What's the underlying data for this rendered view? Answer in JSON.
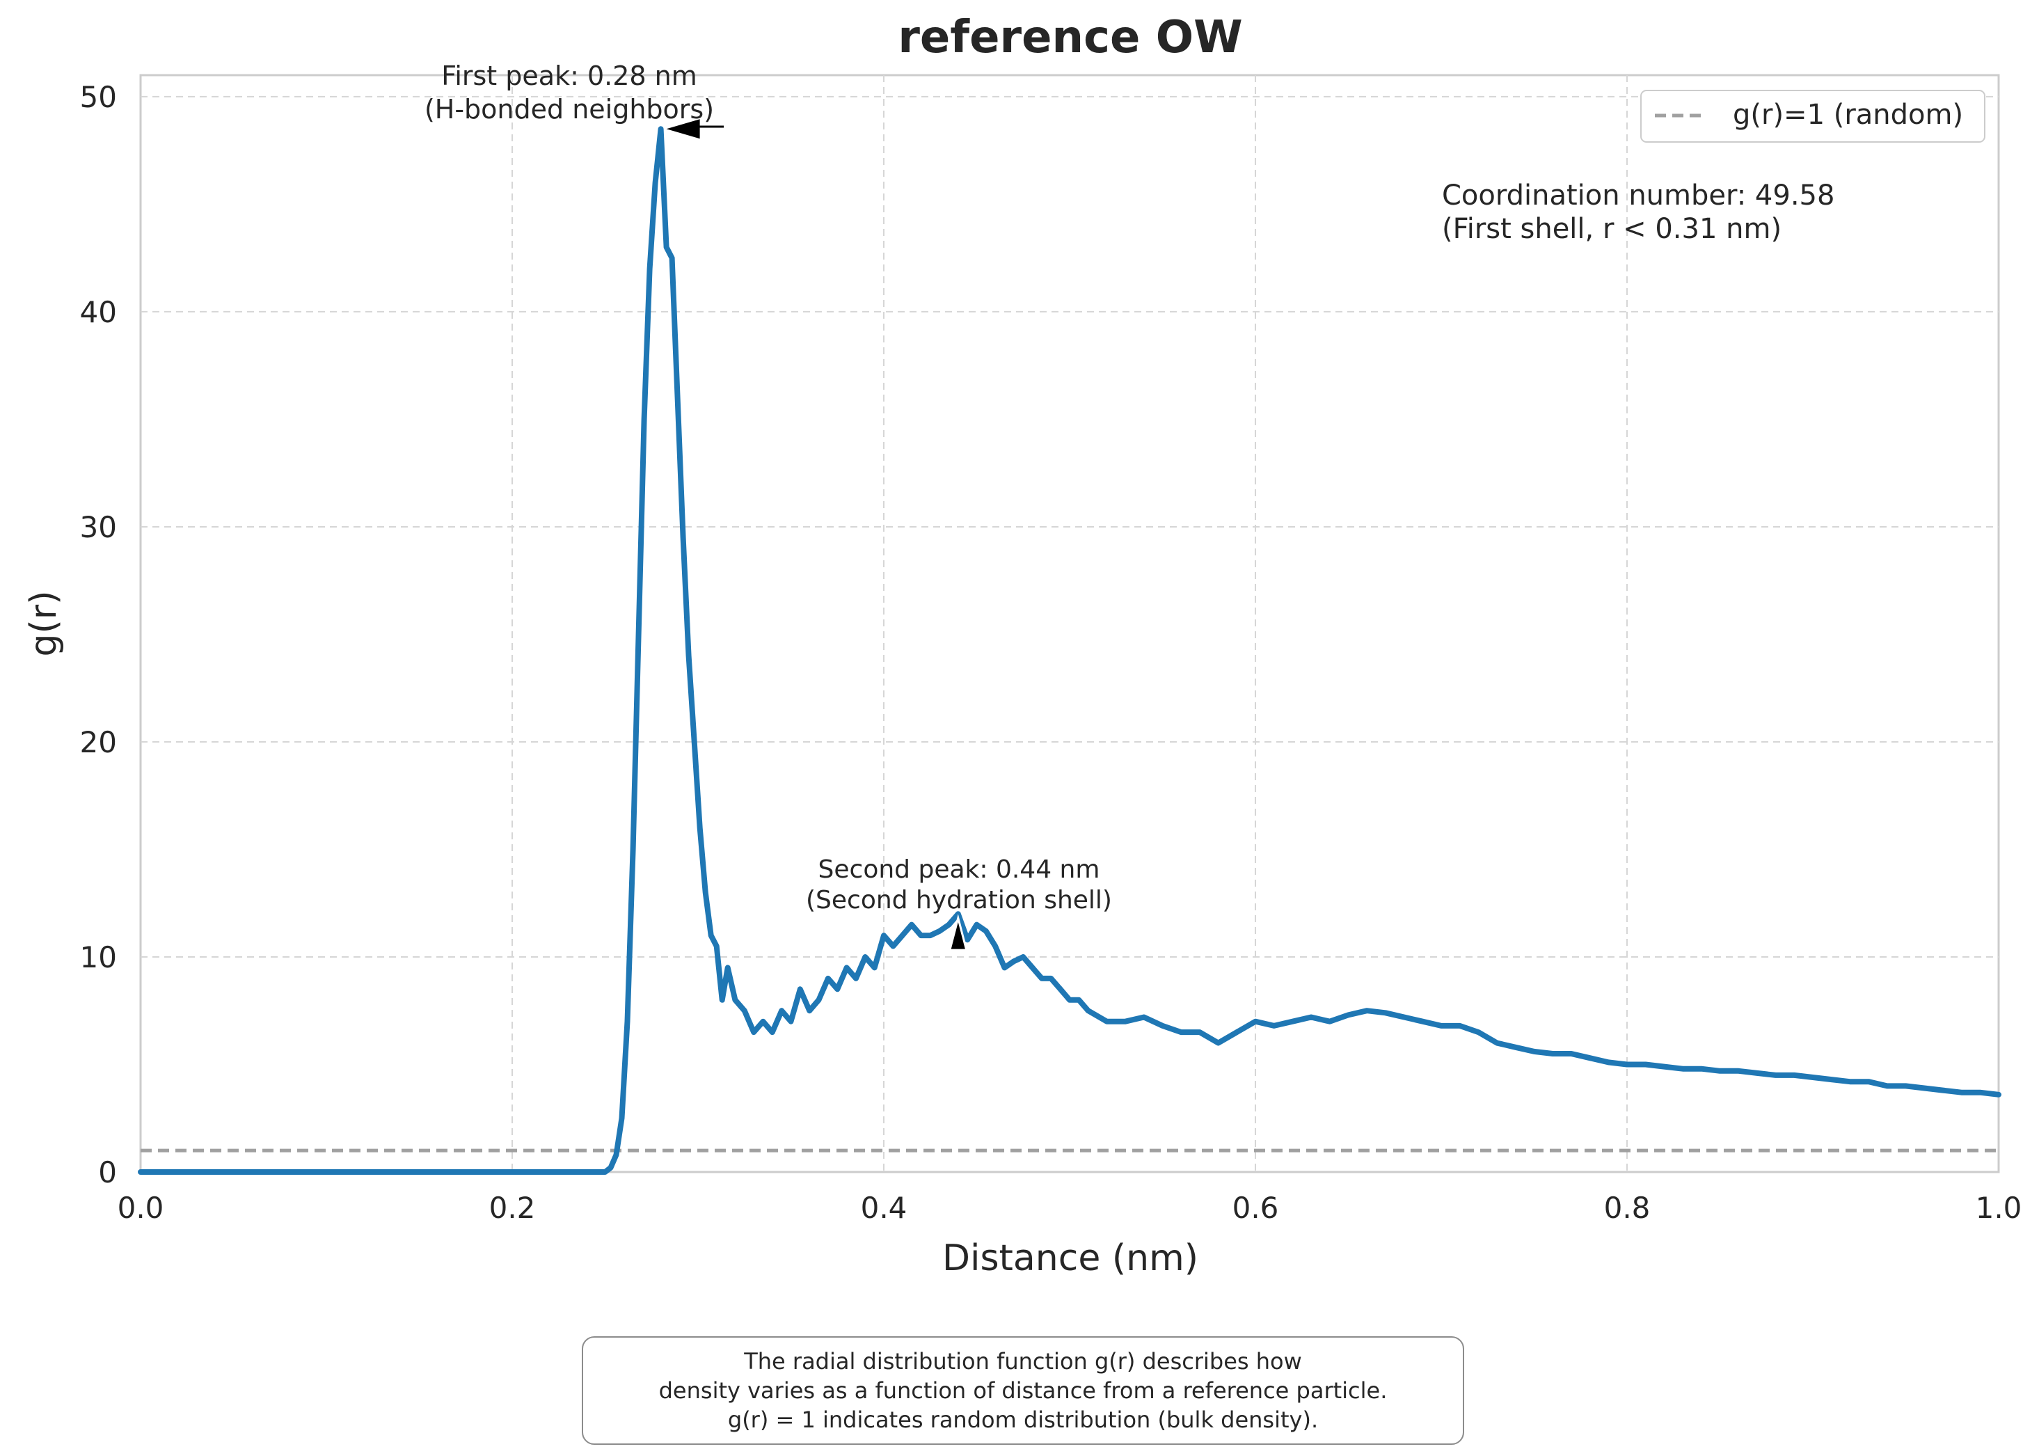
{
  "chart_data": {
    "type": "line",
    "title": "reference OW",
    "xlabel": "Distance (nm)",
    "ylabel": "g(r)",
    "xlim": [
      0.0,
      1.0
    ],
    "ylim": [
      0,
      51
    ],
    "xticks": [
      "0.0",
      "0.2",
      "0.4",
      "0.6",
      "0.8",
      "1.0"
    ],
    "yticks": [
      "0",
      "10",
      "20",
      "30",
      "40",
      "50"
    ],
    "grid": true,
    "legend": {
      "placement": "top-right",
      "entries": [
        "g(r)=1 (random)"
      ]
    },
    "reference_line": {
      "y": 1,
      "label": "g(r)=1 (random)",
      "color": "#a0a0a0"
    },
    "line_color": "#1f77b4",
    "series": [
      {
        "x": [
          0.0,
          0.05,
          0.1,
          0.15,
          0.2,
          0.25,
          0.253,
          0.256,
          0.259,
          0.262,
          0.265,
          0.268,
          0.271,
          0.274,
          0.277,
          0.28,
          0.283,
          0.286,
          0.289,
          0.292,
          0.295,
          0.298,
          0.301,
          0.304,
          0.307,
          0.31,
          0.313,
          0.316,
          0.32,
          0.325,
          0.33,
          0.335,
          0.34,
          0.345,
          0.35,
          0.355,
          0.36,
          0.365,
          0.37,
          0.375,
          0.38,
          0.385,
          0.39,
          0.395,
          0.4,
          0.405,
          0.41,
          0.415,
          0.42,
          0.425,
          0.43,
          0.435,
          0.44,
          0.445,
          0.45,
          0.455,
          0.46,
          0.465,
          0.47,
          0.475,
          0.48,
          0.485,
          0.49,
          0.495,
          0.5,
          0.505,
          0.51,
          0.52,
          0.53,
          0.54,
          0.55,
          0.56,
          0.57,
          0.58,
          0.59,
          0.6,
          0.61,
          0.62,
          0.63,
          0.64,
          0.65,
          0.66,
          0.67,
          0.68,
          0.69,
          0.7,
          0.71,
          0.72,
          0.73,
          0.74,
          0.75,
          0.76,
          0.77,
          0.78,
          0.79,
          0.8,
          0.81,
          0.82,
          0.83,
          0.84,
          0.85,
          0.86,
          0.87,
          0.88,
          0.89,
          0.9,
          0.91,
          0.92,
          0.93,
          0.94,
          0.95,
          0.96,
          0.97,
          0.98,
          0.99,
          1.0
        ],
        "y": [
          0,
          0,
          0,
          0,
          0,
          0,
          0.2,
          0.8,
          2.5,
          7,
          15,
          25,
          35,
          42,
          46,
          48.5,
          43,
          42.5,
          36,
          29.5,
          24,
          20,
          16,
          13,
          11,
          10.5,
          8,
          9.5,
          8,
          7.5,
          6.5,
          7,
          6.5,
          7.5,
          7,
          8.5,
          7.5,
          8,
          9,
          8.5,
          9.5,
          9,
          10,
          9.5,
          11,
          10.5,
          11,
          11.5,
          11,
          11,
          11.2,
          11.5,
          12,
          10.8,
          11.5,
          11.2,
          10.5,
          9.5,
          9.8,
          10,
          9.5,
          9,
          9,
          8.5,
          8,
          8,
          7.5,
          7,
          7,
          7.2,
          6.8,
          6.5,
          6.5,
          6,
          6.5,
          7,
          6.8,
          7,
          7.2,
          7,
          7.3,
          7.5,
          7.4,
          7.2,
          7,
          6.8,
          6.8,
          6.5,
          6,
          5.8,
          5.6,
          5.5,
          5.5,
          5.3,
          5.1,
          5,
          5,
          4.9,
          4.8,
          4.8,
          4.7,
          4.7,
          4.6,
          4.5,
          4.5,
          4.4,
          4.3,
          4.2,
          4.2,
          4.0,
          4.0,
          3.9,
          3.8,
          3.7,
          3.7,
          3.6
        ]
      }
    ],
    "annotations": [
      {
        "text": [
          "First peak: 0.28 nm",
          "(H-bonded neighbors)"
        ],
        "x": 0.28,
        "y": 48.5,
        "arrow": "left"
      },
      {
        "text": [
          "Second peak: 0.44 nm",
          "(Second hydration shell)"
        ],
        "x": 0.44,
        "y": 12,
        "arrow": "up"
      },
      {
        "text": [
          "Coordination number: 49.58",
          "(First shell, r < 0.31 nm)"
        ]
      }
    ]
  },
  "note": {
    "line1": "The radial distribution function g(r) describes how",
    "line2": "density varies as a function of distance from a reference particle.",
    "line3": "g(r) = 1 indicates random distribution (bulk density)."
  }
}
